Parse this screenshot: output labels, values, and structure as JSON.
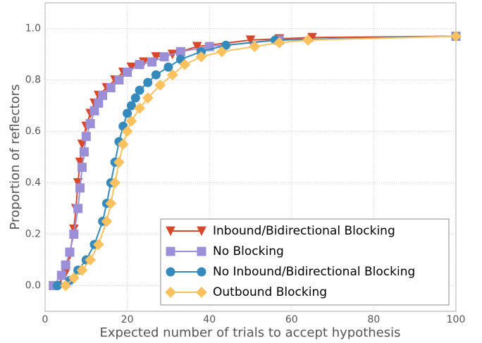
{
  "chart_data": {
    "type": "line",
    "xlabel": "Expected number of trials to accept hypothesis",
    "ylabel": "Proportion of reflectors",
    "xlim": [
      0,
      100
    ],
    "ylim": [
      -0.1,
      1.1
    ],
    "xticks": [
      0,
      20,
      40,
      60,
      80,
      100
    ],
    "yticks": [
      {
        "value": 0,
        "label": "0.0"
      },
      0.2,
      0.4,
      0.6,
      0.8,
      {
        "value": 1,
        "label": "1.0"
      }
    ],
    "grid": true,
    "legend": "lower right",
    "series": [
      {
        "name": "Inbound/Bidirectional Blocking",
        "color": "#d9472b",
        "marker": "triangle-down",
        "x": [
          3,
          5,
          6,
          7,
          7.5,
          8,
          8.5,
          9,
          10,
          11,
          12,
          13,
          15,
          17,
          19,
          21,
          24,
          27,
          31,
          37,
          50,
          57,
          65,
          100
        ],
        "values": [
          0,
          0.05,
          0.12,
          0.22,
          0.3,
          0.4,
          0.48,
          0.55,
          0.62,
          0.67,
          0.71,
          0.74,
          0.77,
          0.8,
          0.83,
          0.85,
          0.87,
          0.89,
          0.9,
          0.93,
          0.955,
          0.96,
          0.965,
          0.97
        ]
      },
      {
        "name": "No Blocking",
        "color": "#9b8fd8",
        "marker": "square",
        "x": [
          2,
          4,
          5,
          6,
          7,
          8,
          8.5,
          9,
          9.5,
          10,
          11,
          12,
          13,
          14,
          16,
          18,
          20,
          23,
          26,
          29,
          33,
          40,
          57,
          100
        ],
        "values": [
          0,
          0.04,
          0.08,
          0.13,
          0.2,
          0.3,
          0.38,
          0.46,
          0.52,
          0.58,
          0.63,
          0.68,
          0.71,
          0.74,
          0.77,
          0.8,
          0.83,
          0.86,
          0.87,
          0.89,
          0.91,
          0.93,
          0.955,
          0.97
        ]
      },
      {
        "name": "No Inbound/Bidirectional Blocking",
        "color": "#348abd",
        "marker": "circle",
        "x": [
          3,
          6,
          8,
          10,
          12,
          14,
          15,
          16,
          17,
          18,
          19,
          20,
          21,
          22,
          23,
          25,
          27,
          30,
          33,
          38,
          44,
          56,
          100
        ],
        "values": [
          0,
          0.02,
          0.06,
          0.1,
          0.16,
          0.25,
          0.32,
          0.4,
          0.48,
          0.56,
          0.62,
          0.67,
          0.7,
          0.73,
          0.76,
          0.79,
          0.82,
          0.85,
          0.88,
          0.91,
          0.935,
          0.955,
          0.97
        ]
      },
      {
        "name": "Outbound Blocking",
        "color": "#fbc15e",
        "marker": "diamond",
        "x": [
          5,
          7,
          9,
          11,
          13,
          15,
          16,
          17,
          18,
          19,
          20,
          21,
          23,
          25,
          28,
          31,
          34,
          38,
          43,
          51,
          57,
          64,
          100
        ],
        "values": [
          0,
          0.03,
          0.06,
          0.1,
          0.16,
          0.25,
          0.32,
          0.4,
          0.48,
          0.55,
          0.6,
          0.64,
          0.69,
          0.73,
          0.78,
          0.82,
          0.86,
          0.89,
          0.91,
          0.93,
          0.945,
          0.955,
          0.97
        ]
      }
    ]
  }
}
